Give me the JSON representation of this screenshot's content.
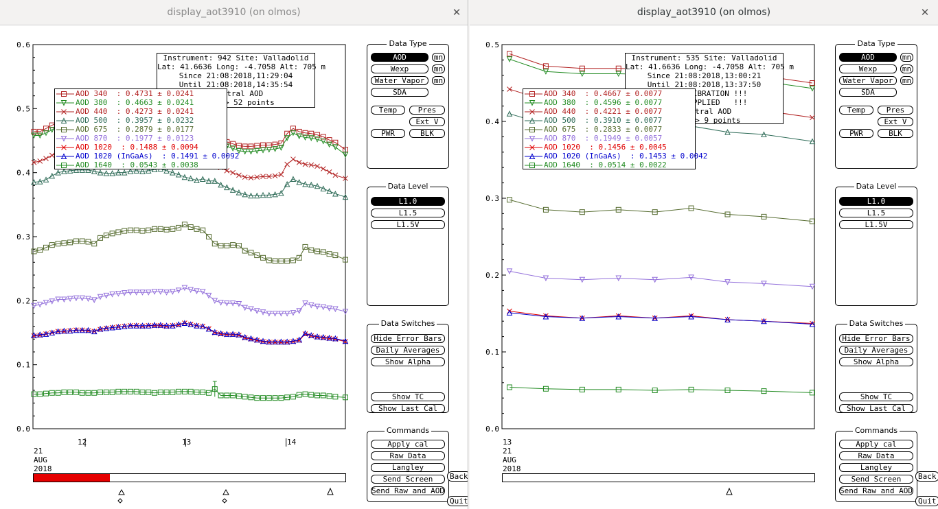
{
  "left": {
    "title": "display_aot3910 (on olmos)",
    "info_lines": [
      "Instrument: 942 Site: Valladolid",
      "Lat: 41.6636 Long: -4.7058 Alt: 705 m",
      "Since 21:08:2018,11:29:04",
      "Until 21:08:2018,14:35:54",
      "Spectral AOD",
      "L1.0 -> 52 points"
    ],
    "legend": [
      {
        "label": "AOD 340  : 0.4731 ± 0.0241",
        "color": "#b22222",
        "marker": "square"
      },
      {
        "label": "AOD 380  : 0.4663 ± 0.0241",
        "color": "#228b22",
        "marker": "tri-down"
      },
      {
        "label": "AOD 440  : 0.4273 ± 0.0241",
        "color": "#b22222",
        "marker": "x"
      },
      {
        "label": "AOD 500  : 0.3957 ± 0.0232",
        "color": "#2e6b57",
        "marker": "tri-up"
      },
      {
        "label": "AOD 675  : 0.2879 ± 0.0177",
        "color": "#556b2f",
        "marker": "square"
      },
      {
        "label": "AOD 870  : 0.1977 ± 0.0123",
        "color": "#9370db",
        "marker": "tri-down"
      },
      {
        "label": "AOD 1020  : 0.1488 ± 0.0094",
        "color": "#e00000",
        "marker": "x"
      },
      {
        "label": "AOD 1020 (InGaAs)  : 0.1491 ± 0.0092",
        "color": "#0000cd",
        "marker": "tri-up"
      },
      {
        "label": "AOD 1640  : 0.0543 ± 0.0038",
        "color": "#228b22",
        "marker": "square"
      }
    ],
    "xticks": [
      "12",
      "13",
      "14"
    ],
    "date_label": [
      "21",
      "AUG",
      "2018"
    ],
    "datebar_fraction": 0.245
  },
  "right": {
    "title": "display_aot3910 (on olmos)",
    "info_lines": [
      "Instrument: 535 Site: Valladolid",
      "Lat: 41.6636 Long: -4.7058 Alt: 705 m",
      "Since 21:08:2018,13:00:21",
      "Until 21:08:2018,13:37:50",
      "!!! CALIBRATION !!!",
      "!!!   APPLIED   !!!",
      "Spectral AOD",
      "L1.0 -> 9 points"
    ],
    "legend": [
      {
        "label": "AOD 340  : 0.4667 ± 0.0077",
        "color": "#b22222",
        "marker": "square"
      },
      {
        "label": "AOD 380  : 0.4596 ± 0.0077",
        "color": "#228b22",
        "marker": "tri-down"
      },
      {
        "label": "AOD 440  : 0.4221 ± 0.0077",
        "color": "#b22222",
        "marker": "x"
      },
      {
        "label": "AOD 500  : 0.3910 ± 0.0077",
        "color": "#2e6b57",
        "marker": "tri-up"
      },
      {
        "label": "AOD 675  : 0.2833 ± 0.0077",
        "color": "#556b2f",
        "marker": "square"
      },
      {
        "label": "AOD 870  : 0.1949 ± 0.0057",
        "color": "#9370db",
        "marker": "tri-down"
      },
      {
        "label": "AOD 1020  : 0.1456 ± 0.0045",
        "color": "#e00000",
        "marker": "x"
      },
      {
        "label": "AOD 1020 (InGaAs)  : 0.1453 ± 0.0042",
        "color": "#0000cd",
        "marker": "tri-up"
      },
      {
        "label": "AOD 1640  : 0.0514 ± 0.0022",
        "color": "#228b22",
        "marker": "square"
      }
    ],
    "xticks": [],
    "date_label": [
      "13",
      "21",
      "AUG",
      "2018"
    ],
    "datebar_fraction": 0
  },
  "panel": {
    "data_type_title": "Data Type",
    "data_type_buttons": [
      "AOD",
      "Wexp",
      "Water Vapor",
      "SDA"
    ],
    "mn": "mn",
    "temp": "Temp",
    "pres": "Pres",
    "extv": "Ext V",
    "pwr": "PWR",
    "blk": "BLK",
    "data_level_title": "Data Level",
    "data_level_buttons": [
      "L1.0",
      "L1.5",
      "L1.5V"
    ],
    "switches_title": "Data Switches",
    "switches": [
      "Hide Error Bars",
      "Daily Averages",
      "Show Alpha",
      "Show TC",
      "Show Last Cal"
    ],
    "commands_title": "Commands",
    "commands": [
      "Apply cal",
      "Raw Data",
      "Langley",
      "Send Screen",
      "Send Raw and AOD"
    ],
    "back": "Back",
    "quit": "Quit"
  },
  "chart_data": [
    {
      "type": "line",
      "title": "",
      "ylim": [
        0,
        0.6
      ],
      "yticks": [
        "0.0",
        "0.1",
        "0.2",
        "0.3",
        "0.4",
        "0.5",
        "0.6"
      ],
      "x_hours": [
        11.49,
        11.55,
        11.61,
        11.67,
        11.73,
        11.79,
        11.85,
        11.91,
        11.97,
        12.03,
        12.09,
        12.15,
        12.21,
        12.27,
        12.33,
        12.39,
        12.45,
        12.51,
        12.57,
        12.63,
        12.69,
        12.75,
        12.81,
        12.87,
        12.93,
        12.99,
        13.05,
        13.11,
        13.17,
        13.23,
        13.29,
        13.35,
        13.41,
        13.47,
        13.53,
        13.59,
        13.65,
        13.71,
        13.77,
        13.83,
        13.89,
        13.95,
        14.01,
        14.07,
        14.13,
        14.19,
        14.25,
        14.31,
        14.37,
        14.43,
        14.49,
        14.59
      ],
      "series": [
        {
          "name": "AOD 340",
          "values": [
            0.464,
            0.464,
            0.469,
            0.474,
            0.478,
            0.479,
            0.478,
            0.479,
            0.478,
            0.477,
            0.476,
            0.476,
            0.476,
            0.476,
            0.477,
            0.477,
            0.478,
            0.478,
            0.477,
            0.478,
            0.479,
            0.479,
            0.477,
            0.476,
            0.474,
            0.471,
            0.463,
            0.459,
            0.461,
            0.458,
            0.458,
            0.452,
            0.448,
            0.445,
            0.442,
            0.441,
            0.441,
            0.442,
            0.443,
            0.443,
            0.444,
            0.446,
            0.461,
            0.469,
            0.464,
            0.462,
            0.461,
            0.459,
            0.456,
            0.451,
            0.447,
            0.436
          ]
        },
        {
          "name": "AOD 380",
          "values": [
            0.458,
            0.458,
            0.462,
            0.467,
            0.471,
            0.472,
            0.471,
            0.472,
            0.471,
            0.47,
            0.469,
            0.469,
            0.469,
            0.469,
            0.47,
            0.47,
            0.471,
            0.471,
            0.47,
            0.471,
            0.472,
            0.472,
            0.47,
            0.469,
            0.467,
            0.464,
            0.456,
            0.452,
            0.454,
            0.451,
            0.451,
            0.445,
            0.441,
            0.438,
            0.434,
            0.433,
            0.433,
            0.434,
            0.435,
            0.436,
            0.437,
            0.439,
            0.454,
            0.462,
            0.457,
            0.455,
            0.454,
            0.452,
            0.449,
            0.444,
            0.44,
            0.428
          ]
        },
        {
          "name": "AOD 440",
          "values": [
            0.416,
            0.418,
            0.422,
            0.427,
            0.431,
            0.433,
            0.433,
            0.434,
            0.433,
            0.432,
            0.431,
            0.431,
            0.43,
            0.43,
            0.431,
            0.431,
            0.432,
            0.432,
            0.431,
            0.432,
            0.433,
            0.433,
            0.431,
            0.429,
            0.427,
            0.424,
            0.418,
            0.414,
            0.416,
            0.413,
            0.413,
            0.408,
            0.403,
            0.4,
            0.396,
            0.393,
            0.392,
            0.393,
            0.394,
            0.394,
            0.395,
            0.397,
            0.413,
            0.421,
            0.416,
            0.413,
            0.412,
            0.41,
            0.406,
            0.401,
            0.396,
            0.391
          ]
        },
        {
          "name": "AOD 500",
          "values": [
            0.385,
            0.386,
            0.389,
            0.395,
            0.4,
            0.402,
            0.403,
            0.404,
            0.404,
            0.404,
            0.402,
            0.4,
            0.399,
            0.399,
            0.4,
            0.4,
            0.402,
            0.403,
            0.402,
            0.403,
            0.405,
            0.406,
            0.403,
            0.4,
            0.397,
            0.393,
            0.391,
            0.388,
            0.39,
            0.387,
            0.387,
            0.381,
            0.377,
            0.373,
            0.369,
            0.366,
            0.364,
            0.364,
            0.365,
            0.365,
            0.366,
            0.368,
            0.382,
            0.39,
            0.385,
            0.382,
            0.381,
            0.379,
            0.375,
            0.371,
            0.367,
            0.362
          ]
        },
        {
          "name": "AOD 675",
          "values": [
            0.277,
            0.279,
            0.283,
            0.287,
            0.289,
            0.29,
            0.291,
            0.293,
            0.293,
            0.292,
            0.289,
            0.298,
            0.302,
            0.305,
            0.307,
            0.309,
            0.31,
            0.31,
            0.309,
            0.31,
            0.312,
            0.312,
            0.311,
            0.312,
            0.314,
            0.319,
            0.315,
            0.312,
            0.31,
            0.3,
            0.289,
            0.286,
            0.286,
            0.287,
            0.286,
            0.278,
            0.275,
            0.271,
            0.267,
            0.263,
            0.262,
            0.262,
            0.262,
            0.263,
            0.267,
            0.284,
            0.279,
            0.277,
            0.276,
            0.273,
            0.271,
            0.264
          ]
        },
        {
          "name": "AOD 870",
          "values": [
            0.192,
            0.194,
            0.197,
            0.199,
            0.202,
            0.202,
            0.203,
            0.204,
            0.204,
            0.203,
            0.201,
            0.206,
            0.208,
            0.21,
            0.211,
            0.212,
            0.213,
            0.213,
            0.213,
            0.213,
            0.214,
            0.214,
            0.213,
            0.214,
            0.216,
            0.22,
            0.217,
            0.215,
            0.214,
            0.208,
            0.2,
            0.197,
            0.196,
            0.196,
            0.195,
            0.189,
            0.187,
            0.184,
            0.182,
            0.18,
            0.18,
            0.18,
            0.18,
            0.181,
            0.184,
            0.196,
            0.193,
            0.191,
            0.19,
            0.188,
            0.187,
            0.183
          ]
        },
        {
          "name": "AOD 1020",
          "values": [
            0.145,
            0.146,
            0.148,
            0.15,
            0.152,
            0.152,
            0.153,
            0.154,
            0.154,
            0.153,
            0.152,
            0.155,
            0.157,
            0.158,
            0.159,
            0.16,
            0.161,
            0.161,
            0.16,
            0.161,
            0.161,
            0.161,
            0.16,
            0.161,
            0.162,
            0.165,
            0.163,
            0.161,
            0.16,
            0.156,
            0.15,
            0.148,
            0.147,
            0.147,
            0.146,
            0.142,
            0.14,
            0.138,
            0.136,
            0.135,
            0.135,
            0.135,
            0.135,
            0.136,
            0.138,
            0.148,
            0.145,
            0.143,
            0.142,
            0.141,
            0.14,
            0.136
          ]
        },
        {
          "name": "AOD 1020 (InGaAs)",
          "values": [
            0.146,
            0.147,
            0.148,
            0.15,
            0.152,
            0.153,
            0.153,
            0.154,
            0.154,
            0.154,
            0.152,
            0.156,
            0.157,
            0.158,
            0.159,
            0.16,
            0.161,
            0.161,
            0.161,
            0.161,
            0.162,
            0.162,
            0.161,
            0.161,
            0.163,
            0.165,
            0.163,
            0.161,
            0.16,
            0.156,
            0.151,
            0.149,
            0.148,
            0.148,
            0.147,
            0.143,
            0.141,
            0.139,
            0.137,
            0.136,
            0.136,
            0.136,
            0.136,
            0.137,
            0.139,
            0.149,
            0.146,
            0.144,
            0.143,
            0.142,
            0.141,
            0.137
          ]
        },
        {
          "name": "AOD 1640",
          "values": [
            0.054,
            0.054,
            0.055,
            0.056,
            0.056,
            0.057,
            0.057,
            0.057,
            0.056,
            0.056,
            0.056,
            0.057,
            0.057,
            0.057,
            0.058,
            0.058,
            0.058,
            0.058,
            0.057,
            0.057,
            0.056,
            0.057,
            0.057,
            0.057,
            0.058,
            0.058,
            0.058,
            0.057,
            0.057,
            0.056,
            0.062,
            0.052,
            0.052,
            0.052,
            0.051,
            0.05,
            0.049,
            0.048,
            0.048,
            0.048,
            0.048,
            0.048,
            0.049,
            0.05,
            0.053,
            0.054,
            0.053,
            0.052,
            0.052,
            0.051,
            0.05,
            0.049
          ]
        }
      ]
    },
    {
      "type": "line",
      "title": "",
      "ylim": [
        0,
        0.5
      ],
      "yticks": [
        "0.0",
        "0.1",
        "0.2",
        "0.3",
        "0.4",
        "0.5"
      ],
      "x_minutes": [
        0,
        4.5,
        9,
        13.5,
        18,
        22.5,
        27,
        31.5,
        37.5
      ],
      "series": [
        {
          "name": "AOD 340",
          "values": [
            0.488,
            0.472,
            0.469,
            0.469,
            0.468,
            0.471,
            0.462,
            0.459,
            0.45
          ]
        },
        {
          "name": "AOD 380",
          "values": [
            0.481,
            0.465,
            0.462,
            0.462,
            0.461,
            0.463,
            0.455,
            0.452,
            0.443
          ]
        },
        {
          "name": "AOD 440",
          "values": [
            0.442,
            0.427,
            0.424,
            0.424,
            0.422,
            0.425,
            0.417,
            0.414,
            0.405
          ]
        },
        {
          "name": "AOD 500",
          "values": [
            0.41,
            0.396,
            0.393,
            0.393,
            0.391,
            0.394,
            0.386,
            0.383,
            0.374
          ]
        },
        {
          "name": "AOD 675",
          "values": [
            0.298,
            0.285,
            0.282,
            0.285,
            0.282,
            0.287,
            0.279,
            0.276,
            0.27
          ]
        },
        {
          "name": "AOD 870",
          "values": [
            0.205,
            0.196,
            0.194,
            0.196,
            0.194,
            0.197,
            0.191,
            0.189,
            0.185
          ]
        },
        {
          "name": "AOD 1020",
          "values": [
            0.153,
            0.147,
            0.144,
            0.147,
            0.144,
            0.147,
            0.142,
            0.14,
            0.137
          ]
        },
        {
          "name": "AOD 1020 (InGaAs)",
          "values": [
            0.151,
            0.146,
            0.144,
            0.146,
            0.144,
            0.146,
            0.142,
            0.14,
            0.136
          ]
        },
        {
          "name": "AOD 1640",
          "values": [
            0.054,
            0.052,
            0.051,
            0.051,
            0.05,
            0.051,
            0.05,
            0.049,
            0.047
          ]
        }
      ]
    }
  ]
}
